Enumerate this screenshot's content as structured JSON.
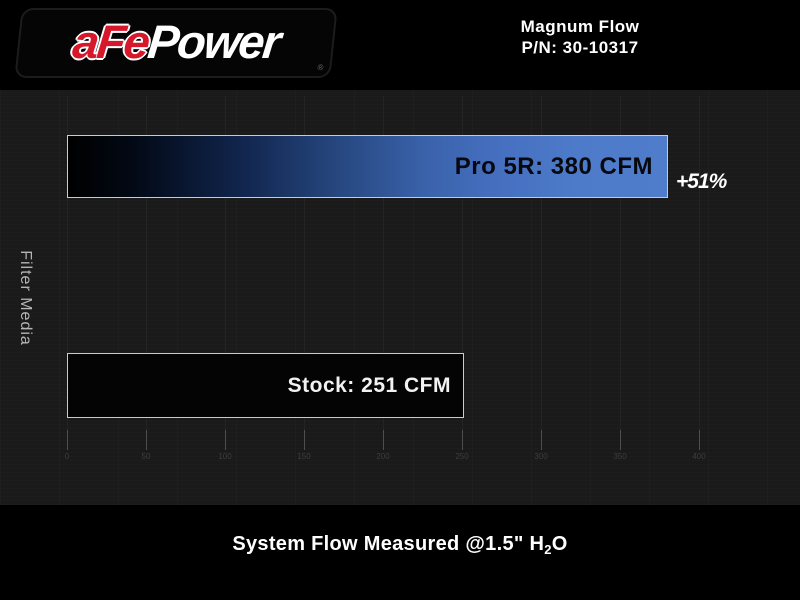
{
  "header": {
    "logo": {
      "part1": "aFe",
      "part2": "Power",
      "registered": "®"
    },
    "title_line1": "Magnum Flow",
    "title_line2": "P/N: 30-10317"
  },
  "chart_data": {
    "type": "bar",
    "orientation": "horizontal",
    "title": "Magnum Flow P/N: 30-10317",
    "ylabel": "Filter Media",
    "xlabel": "",
    "unit": "CFM",
    "xlim": [
      0,
      400
    ],
    "xticks": [
      0,
      50,
      100,
      150,
      200,
      250,
      300,
      350,
      400
    ],
    "grid": true,
    "legend_position": "none",
    "series": [
      {
        "name": "Pro 5R",
        "value": 380,
        "label": "Pro 5R: 380 CFM",
        "annotation": "+51%",
        "bar_style": "blue-gradient",
        "label_color": "black"
      },
      {
        "name": "Stock",
        "value": 251,
        "label": "Stock: 251 CFM",
        "annotation": "",
        "bar_style": "black",
        "label_color": "white"
      }
    ],
    "note": "System Flow Measured @1.5\" H2O"
  },
  "footer": {
    "prefix": "System Flow Measured @1.5\" H",
    "subscript": "2",
    "suffix": "O"
  },
  "colors": {
    "background": "#000000",
    "chart_background": "#1a1a1a",
    "accent_blue": "#4d7bc9",
    "bar_border": "#cbcbcb",
    "logo_red": "#d7182a",
    "text_white": "#ffffff",
    "axis_text": "#3d3d3d",
    "ylabel_text": "#b5b5b5"
  }
}
